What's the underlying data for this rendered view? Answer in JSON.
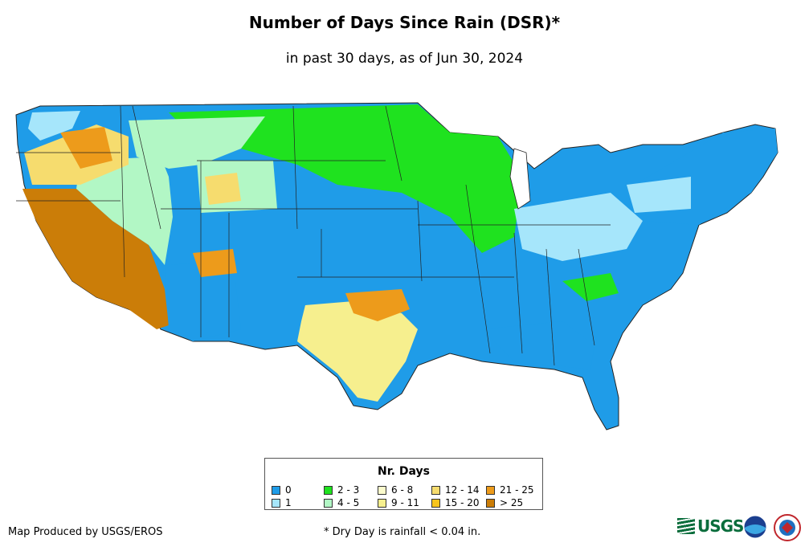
{
  "title": "Number of Days Since Rain (DSR)*",
  "subtitle": "in past 30 days, as of Jun 30, 2024",
  "legend": {
    "title": "Nr. Days",
    "items": [
      {
        "label": "0",
        "color": "#1f9ce8"
      },
      {
        "label": "1",
        "color": "#a6e6fb"
      },
      {
        "label": "2 - 3",
        "color": "#1fe21f"
      },
      {
        "label": "4 - 5",
        "color": "#b2f7c5"
      },
      {
        "label": "6 - 8",
        "color": "#fbfbcc"
      },
      {
        "label": "9 - 11",
        "color": "#f6ef8e"
      },
      {
        "label": "12 - 14",
        "color": "#f6dc6e"
      },
      {
        "label": "15 - 20",
        "color": "#f7c41c"
      },
      {
        "label": "21 - 25",
        "color": "#ed9b1b"
      },
      {
        "label": "> 25",
        "color": "#cb7d08"
      }
    ]
  },
  "credit": "Map Produced by USGS/EROS",
  "footnote": "* Dry Day is rainfall < 0.04 in.",
  "logos": {
    "usgs": "USGS",
    "noaa": "noaa-logo",
    "nws": "nws-logo"
  }
}
